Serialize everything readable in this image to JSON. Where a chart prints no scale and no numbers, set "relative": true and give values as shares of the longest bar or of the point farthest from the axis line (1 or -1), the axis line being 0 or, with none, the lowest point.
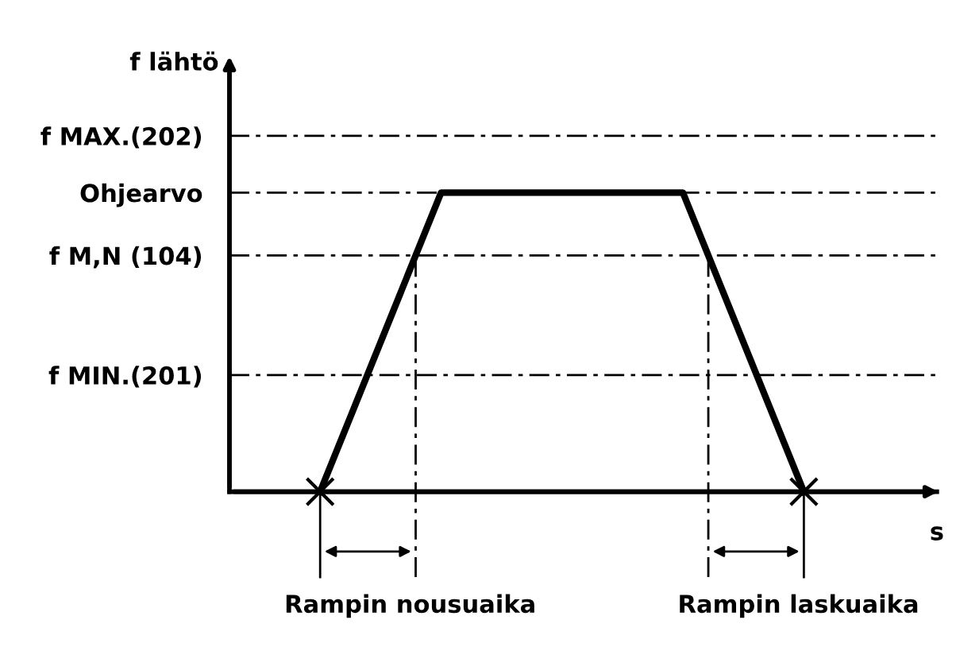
{
  "chart_data": {
    "type": "line",
    "relative": true,
    "xlabel": "s",
    "categories": [
      null,
      null,
      null,
      null,
      null
    ],
    "series": [
      {
        "color": "#000000",
        "values": [
          0,
          1,
          1,
          1,
          0
        ]
      }
    ],
    "ref_lines": [
      {
        "axis": "y",
        "value": 1.19,
        "label": "f MAX.(202)",
        "line_style": "dashed",
        "color": "#000000"
      },
      {
        "axis": "y",
        "value": 1,
        "label": "Ohjearvo",
        "line_style": "dashed",
        "color": "#000000"
      },
      {
        "axis": "y",
        "value": 0.79,
        "label": "f M,N (104)",
        "line_style": "dashed",
        "color": "#000000"
      },
      {
        "axis": "y",
        "value": 0.39,
        "label": "f MIN.(201)",
        "line_style": "dashed",
        "color": "#000000"
      }
    ],
    "line_style": "solid",
    "marker": "none",
    "legend": false,
    "annotations": [
      "f lähtö",
      "Rampin nousuaika",
      "Rampin laskuaika"
    ]
  }
}
